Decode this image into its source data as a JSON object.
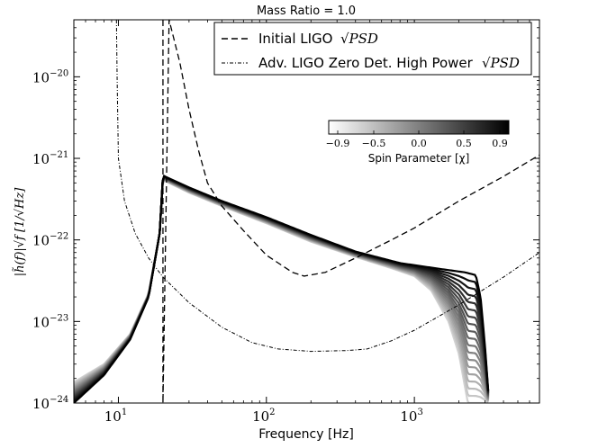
{
  "chart_data": {
    "type": "line",
    "title": "Mass Ratio = 1.0",
    "xlabel": "Frequency [Hz]",
    "ylabel": "|h̃(f)|√f [1/√Hz]",
    "xscale": "log",
    "yscale": "log",
    "xlim": [
      5,
      7000
    ],
    "ylim": [
      1e-24,
      5e-20
    ],
    "x_ticks": [
      {
        "value": 10,
        "base": "10",
        "exp": "1"
      },
      {
        "value": 100,
        "base": "10",
        "exp": "2"
      },
      {
        "value": 1000,
        "base": "10",
        "exp": "3"
      }
    ],
    "y_ticks": [
      {
        "value": 1e-24,
        "base": "10",
        "exp": "−24"
      },
      {
        "value": 1e-23,
        "base": "10",
        "exp": "−23"
      },
      {
        "value": 1e-22,
        "base": "10",
        "exp": "−22"
      },
      {
        "value": 1e-21,
        "base": "10",
        "exp": "−21"
      },
      {
        "value": 1e-20,
        "base": "10",
        "exp": "−20"
      }
    ],
    "legend": {
      "placement": "top-right",
      "entries": [
        {
          "label": "Initial LIGO",
          "math": "√PSD",
          "style": "dashed"
        },
        {
          "label": "Adv. LIGO Zero Det. High Power",
          "math": "√PSD",
          "style": "dashdot"
        }
      ]
    },
    "colorbar": {
      "label": "Spin Parameter [χ]",
      "range": [
        -1.0,
        1.0
      ],
      "ticks": [
        "−0.9",
        "−0.5",
        "0.0",
        "0.5",
        "0.9"
      ],
      "tick_values": [
        -0.9,
        -0.5,
        0.0,
        0.5,
        0.9
      ],
      "cmap": [
        "#ffffff",
        "#000000"
      ]
    },
    "series": [
      {
        "name": "Initial LIGO √PSD",
        "style": "dashed",
        "points": [
          [
            20.0,
            5e-20
          ],
          [
            20.0,
            1e-24
          ],
          [
            22,
            5e-20
          ],
          [
            26,
            1.5e-20
          ],
          [
            30,
            4e-21
          ],
          [
            35,
            1.2e-21
          ],
          [
            40,
            5e-22
          ],
          [
            50,
            2.6e-22
          ],
          [
            70,
            1.3e-22
          ],
          [
            100,
            6.5e-23
          ],
          [
            150,
            4e-23
          ],
          [
            180,
            3.6e-23
          ],
          [
            250,
            4e-23
          ],
          [
            400,
            6e-23
          ],
          [
            700,
            1e-22
          ],
          [
            1000,
            1.4e-22
          ],
          [
            2000,
            3e-22
          ],
          [
            4000,
            6e-22
          ],
          [
            7000,
            1.1e-21
          ]
        ]
      },
      {
        "name": "Adv. LIGO Zero Det. High Power √PSD",
        "style": "dashdot",
        "points": [
          [
            9.7,
            5e-20
          ],
          [
            9.8,
            1e-20
          ],
          [
            10,
            1e-21
          ],
          [
            11,
            3e-22
          ],
          [
            13,
            1.2e-22
          ],
          [
            16,
            6e-23
          ],
          [
            20,
            3.5e-23
          ],
          [
            30,
            1.7e-23
          ],
          [
            50,
            8.5e-24
          ],
          [
            80,
            5.5e-24
          ],
          [
            120,
            4.6e-24
          ],
          [
            200,
            4.3e-24
          ],
          [
            350,
            4.4e-24
          ],
          [
            480,
            4.6e-24
          ],
          [
            700,
            5.8e-24
          ],
          [
            1000,
            7.8e-24
          ],
          [
            2000,
            1.6e-23
          ],
          [
            4000,
            3.5e-23
          ],
          [
            7000,
            7e-23
          ]
        ]
      }
    ],
    "waveform_family": {
      "spins": [
        -0.9,
        -0.8,
        -0.7,
        -0.6,
        -0.5,
        -0.4,
        -0.3,
        -0.2,
        -0.1,
        0.0,
        0.1,
        0.2,
        0.3,
        0.4,
        0.5,
        0.6,
        0.7,
        0.8,
        0.9
      ],
      "points_spin_min": [
        [
          5,
          1.8e-24
        ],
        [
          8,
          3e-24
        ],
        [
          12,
          7e-24
        ],
        [
          16,
          2.2e-23
        ],
        [
          19,
          1.2e-22
        ],
        [
          20,
          5.5e-22
        ],
        [
          21,
          5.2e-22
        ],
        [
          30,
          3.8e-22
        ],
        [
          50,
          2.6e-22
        ],
        [
          100,
          1.6e-22
        ],
        [
          200,
          9.5e-23
        ],
        [
          400,
          6.2e-23
        ],
        [
          700,
          4.5e-23
        ],
        [
          1000,
          3.6e-23
        ],
        [
          1300,
          2.4e-23
        ],
        [
          1700,
          1e-23
        ],
        [
          2000,
          4e-24
        ],
        [
          2300,
          1e-24
        ]
      ],
      "points_spin_max": [
        [
          5,
          1e-24
        ],
        [
          8,
          2.2e-24
        ],
        [
          12,
          6e-24
        ],
        [
          16,
          2e-23
        ],
        [
          19,
          1.2e-22
        ],
        [
          20,
          6.2e-22
        ],
        [
          21,
          5.9e-22
        ],
        [
          30,
          4.4e-22
        ],
        [
          50,
          3e-22
        ],
        [
          100,
          1.9e-22
        ],
        [
          200,
          1.15e-22
        ],
        [
          400,
          7.2e-23
        ],
        [
          800,
          5.2e-23
        ],
        [
          1500,
          4.4e-23
        ],
        [
          2200,
          4e-23
        ],
        [
          2600,
          3.7e-23
        ],
        [
          2800,
          2e-23
        ],
        [
          3000,
          5e-24
        ],
        [
          3200,
          1e-24
        ]
      ]
    }
  }
}
